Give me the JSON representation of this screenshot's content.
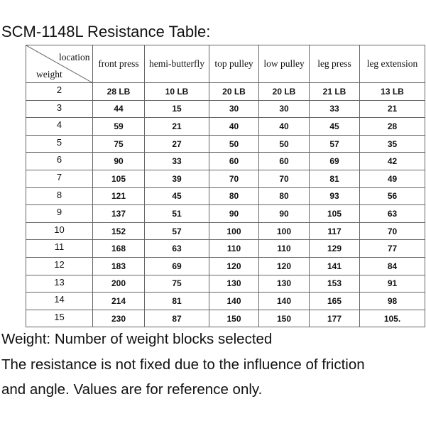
{
  "title": "SCM-1148L Resistance Table:",
  "table": {
    "corner": {
      "top": "location",
      "bottom": "weight"
    },
    "columns": [
      "front press",
      "hemi-butterfly",
      "top pulley",
      "low pulley",
      "leg press",
      "leg extension"
    ],
    "rows": [
      [
        "2",
        "28 LB",
        "10 LB",
        "20 LB",
        "20 LB",
        "21 LB",
        "13 LB"
      ],
      [
        "3",
        "44",
        "15",
        "30",
        "30",
        "33",
        "21"
      ],
      [
        "4",
        "59",
        "21",
        "40",
        "40",
        "45",
        "28"
      ],
      [
        "5",
        "75",
        "27",
        "50",
        "50",
        "57",
        "35"
      ],
      [
        "6",
        "90",
        "33",
        "60",
        "60",
        "69",
        "42"
      ],
      [
        "7",
        "105",
        "39",
        "70",
        "70",
        "81",
        "49"
      ],
      [
        "8",
        "121",
        "45",
        "80",
        "80",
        "93",
        "56"
      ],
      [
        "9",
        "137",
        "51",
        "90",
        "90",
        "105",
        "63"
      ],
      [
        "10",
        "152",
        "57",
        "100",
        "100",
        "117",
        "70"
      ],
      [
        "11",
        "168",
        "63",
        "110",
        "110",
        "129",
        "77"
      ],
      [
        "12",
        "183",
        "69",
        "120",
        "120",
        "141",
        "84"
      ],
      [
        "13",
        "200",
        "75",
        "130",
        "130",
        "153",
        "91"
      ],
      [
        "14",
        "214",
        "81",
        "140",
        "140",
        "165",
        "98"
      ],
      [
        "15",
        "230",
        "87",
        "150",
        "150",
        "177",
        "105."
      ]
    ]
  },
  "notes": [
    "Weight: Number of weight blocks selected",
    "The resistance is not fixed due to the influence of friction",
    "and angle. Values are for reference only."
  ]
}
